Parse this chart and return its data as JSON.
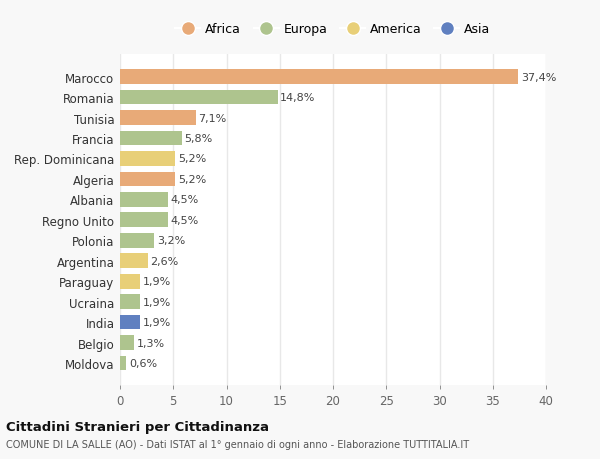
{
  "countries": [
    "Moldova",
    "Belgio",
    "India",
    "Ucraina",
    "Paraguay",
    "Argentina",
    "Polonia",
    "Regno Unito",
    "Albania",
    "Algeria",
    "Rep. Dominicana",
    "Francia",
    "Tunisia",
    "Romania",
    "Marocco"
  ],
  "values": [
    0.6,
    1.3,
    1.9,
    1.9,
    1.9,
    2.6,
    3.2,
    4.5,
    4.5,
    5.2,
    5.2,
    5.8,
    7.1,
    14.8,
    37.4
  ],
  "labels": [
    "0,6%",
    "1,3%",
    "1,9%",
    "1,9%",
    "1,9%",
    "2,6%",
    "3,2%",
    "4,5%",
    "4,5%",
    "5,2%",
    "5,2%",
    "5,8%",
    "7,1%",
    "14,8%",
    "37,4%"
  ],
  "colors": [
    "#aec48e",
    "#aec48e",
    "#6080c0",
    "#aec48e",
    "#e8cf78",
    "#e8cf78",
    "#aec48e",
    "#aec48e",
    "#aec48e",
    "#e8aa78",
    "#e8cf78",
    "#aec48e",
    "#e8aa78",
    "#aec48e",
    "#e8aa78"
  ],
  "legend_labels": [
    "Africa",
    "Europa",
    "America",
    "Asia"
  ],
  "legend_colors": [
    "#e8aa78",
    "#aec48e",
    "#e8cf78",
    "#6080c0"
  ],
  "title": "Cittadini Stranieri per Cittadinanza",
  "subtitle": "COMUNE DI LA SALLE (AO) - Dati ISTAT al 1° gennaio di ogni anno - Elaborazione TUTTITALIA.IT",
  "xlim": [
    0,
    40
  ],
  "xticks": [
    0,
    5,
    10,
    15,
    20,
    25,
    30,
    35,
    40
  ],
  "background_color": "#f8f8f8",
  "bar_background": "#ffffff",
  "grid_color": "#e8e8e8"
}
